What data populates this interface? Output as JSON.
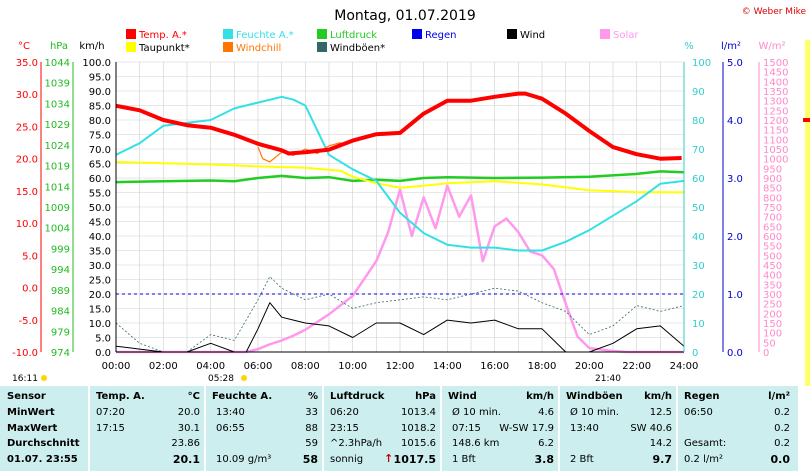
{
  "title": "Montag, 01.07.2019",
  "copyright": "© Weber Mike",
  "legend": [
    {
      "label": "Temp. A.*",
      "color": "#ff0000"
    },
    {
      "label": "Feuchte A.*",
      "color": "#33e0e6"
    },
    {
      "label": "Luftdruck",
      "color": "#22cc22"
    },
    {
      "label": "Regen",
      "color": "#0000ee"
    },
    {
      "label": "Wind",
      "color": "#000000"
    },
    {
      "label": "Solar",
      "color": "#ff99ee"
    },
    {
      "label": "Taupunkt*",
      "color": "#ffff00"
    },
    {
      "label": "Windchill",
      "color": "#ff7700"
    },
    {
      "label": "Windböen*",
      "color": "#336666"
    }
  ],
  "axis_units": {
    "temp": "°C",
    "press": "hPa",
    "wind": "km/h",
    "hum": "%",
    "rain": "l/m²",
    "solar": "W/m²"
  },
  "sun": {
    "rise": "05:28",
    "set": "21:40",
    "left_label": "16:11"
  },
  "chart_data": {
    "type": "line",
    "x_range": [
      "00:00",
      "24:00"
    ],
    "x_ticks": [
      "00:00",
      "02:00",
      "04:00",
      "06:00",
      "08:00",
      "10:00",
      "12:00",
      "14:00",
      "16:00",
      "18:00",
      "20:00",
      "22:00",
      "24:00"
    ],
    "ylim_temp": [
      -10,
      35
    ],
    "temp_ticks": [
      "35.0",
      "30.0",
      "25.0",
      "20.0",
      "15.0",
      "10.0",
      "5.0",
      "0.0",
      "-5.0",
      "-10.0"
    ],
    "ylim_press": [
      974,
      1044
    ],
    "press_ticks": [
      "1044",
      "1039",
      "1034",
      "1029",
      "1024",
      "1019",
      "1014",
      "1009",
      "1004",
      "999",
      "994",
      "989",
      "984",
      "979",
      "974"
    ],
    "ylim_wind": [
      0,
      100
    ],
    "wind_ticks": [
      "100.0",
      "95.0",
      "90.0",
      "85.0",
      "80.0",
      "75.0",
      "70.0",
      "65.0",
      "60.0",
      "55.0",
      "50.0",
      "45.0",
      "40.0",
      "35.0",
      "30.0",
      "25.0",
      "20.0",
      "15.0",
      "10.0",
      "5.0",
      "0.0"
    ],
    "ylim_hum": [
      0,
      100
    ],
    "hum_ticks": [
      "100",
      "90",
      "80",
      "70",
      "60",
      "50",
      "40",
      "30",
      "20",
      "10",
      "0"
    ],
    "ylim_rain": [
      0,
      5
    ],
    "rain_ticks": [
      "5.0",
      "4.0",
      "3.0",
      "2.0",
      "1.0",
      "0.0"
    ],
    "ylim_solar": [
      0,
      1500
    ],
    "solar_ticks": [
      "1500",
      "1450",
      "1400",
      "1350",
      "1300",
      "1250",
      "1200",
      "1150",
      "1100",
      "1050",
      "1000",
      "950",
      "900",
      "850",
      "800",
      "750",
      "700",
      "650",
      "600",
      "550",
      "500",
      "450",
      "400",
      "350",
      "300",
      "250",
      "200",
      "150",
      "100",
      "50",
      "0"
    ],
    "series": [
      {
        "name": "Temp. A.*",
        "axis": "temp",
        "color": "#ff0000",
        "x": [
          0,
          1,
          2,
          3,
          4,
          5,
          6,
          7,
          7.3,
          8,
          9,
          10,
          11,
          12,
          13,
          14,
          15,
          16,
          17,
          17.3,
          18,
          19,
          20,
          21,
          22,
          23,
          23.9
        ],
        "y": [
          28.2,
          27.5,
          26,
          25.2,
          24.8,
          23.7,
          22.3,
          21.3,
          20.8,
          21,
          21.4,
          22.8,
          23.8,
          24,
          27,
          29,
          29,
          29.6,
          30.1,
          30.1,
          29.3,
          27,
          24.3,
          21.8,
          20.7,
          20,
          20.1
        ]
      },
      {
        "name": "Feuchte A.*",
        "axis": "hum",
        "color": "#33e0e6",
        "x": [
          0,
          1,
          2,
          3,
          4,
          5,
          6,
          7,
          7.5,
          8,
          9,
          10,
          11,
          12,
          13,
          14,
          15,
          16,
          17,
          18,
          19,
          20,
          21,
          22,
          23,
          24
        ],
        "y": [
          68,
          72,
          78,
          79,
          80,
          84,
          86,
          88,
          87,
          85,
          68,
          63,
          59,
          48,
          41,
          37,
          36,
          36,
          35,
          35,
          38,
          42,
          47,
          52,
          58,
          59
        ]
      },
      {
        "name": "Luftdruck",
        "axis": "press",
        "color": "#22cc22",
        "x": [
          0,
          2,
          4,
          5,
          6,
          7,
          8,
          9,
          10,
          11,
          12,
          13,
          14,
          16,
          18,
          20,
          22,
          23,
          24
        ],
        "y": [
          1015,
          1015.2,
          1015.4,
          1015.2,
          1016,
          1016.5,
          1016,
          1016.2,
          1015.3,
          1015.6,
          1015.3,
          1016,
          1016.2,
          1016,
          1016.1,
          1016.3,
          1017,
          1017.6,
          1017.4
        ]
      },
      {
        "name": "Taupunkt*",
        "axis": "temp",
        "color": "#ffff00",
        "x": [
          0,
          2,
          4,
          6,
          8,
          9.5,
          10,
          11,
          12,
          13,
          14,
          16,
          18,
          20,
          22,
          24
        ],
        "y": [
          19.5,
          19.3,
          19.1,
          18.8,
          18.6,
          18.1,
          17.2,
          16.2,
          15.5,
          15.8,
          16.2,
          16.5,
          16,
          15.1,
          14.8,
          14.8
        ]
      },
      {
        "name": "Windchill",
        "axis": "temp",
        "color": "#ff7700",
        "x": [
          6,
          6.2,
          6.5,
          7,
          7.5,
          8,
          8.5,
          9,
          9.5
        ],
        "y": [
          21.8,
          20,
          19.5,
          21,
          20.5,
          21.5,
          20.8,
          22,
          22.5
        ]
      },
      {
        "name": "Wind",
        "axis": "wind",
        "color": "#000000",
        "x": [
          0,
          1,
          2,
          3,
          4,
          5,
          5.5,
          6,
          6.5,
          7,
          7.5,
          8,
          9,
          10,
          11,
          12,
          13,
          14,
          15,
          16,
          17,
          18,
          19,
          20,
          21,
          22,
          23,
          24
        ],
        "y": [
          2,
          1,
          0,
          0,
          3,
          0,
          0,
          8,
          17,
          12,
          11,
          10,
          9,
          5,
          10,
          10,
          6,
          11,
          10,
          11,
          8,
          8,
          0,
          0,
          3,
          8,
          9,
          2
        ]
      },
      {
        "name": "Windböen*",
        "axis": "wind",
        "color": "#336666",
        "x": [
          0,
          1,
          2,
          3,
          4,
          5,
          6,
          6.5,
          7,
          8,
          9,
          10,
          11,
          12,
          13,
          14,
          15,
          16,
          17,
          18,
          19,
          20,
          21,
          22,
          23,
          24
        ],
        "y": [
          10,
          3,
          0,
          0,
          6,
          4,
          18,
          26,
          22,
          18,
          20,
          15,
          17,
          18,
          19,
          18,
          20,
          22,
          21,
          17,
          14,
          6,
          9,
          16,
          14,
          16
        ]
      },
      {
        "name": "Regen",
        "axis": "rain",
        "color": "#0000ee",
        "x": [
          0,
          24
        ],
        "y": [
          1.0,
          1.0
        ]
      },
      {
        "name": "Solar",
        "axis": "solar",
        "color": "#ff99ee",
        "x": [
          0,
          5.5,
          6,
          6.5,
          7,
          7.5,
          8,
          8.5,
          9,
          10,
          11,
          11.5,
          12,
          12.5,
          13,
          13.5,
          14,
          14.5,
          15,
          15.5,
          16,
          16.5,
          17,
          17.5,
          18,
          18.5,
          19,
          19.5,
          20,
          21,
          21.6,
          24
        ],
        "y": [
          0,
          0,
          15,
          40,
          60,
          85,
          115,
          155,
          195,
          290,
          470,
          620,
          840,
          600,
          800,
          640,
          860,
          700,
          810,
          470,
          650,
          690,
          620,
          520,
          500,
          430,
          250,
          80,
          20,
          5,
          0,
          0
        ]
      }
    ]
  },
  "stats": {
    "headers": {
      "sensor": "Sensor",
      "temp": "Temp. A.",
      "temp_unit": "°C",
      "hum": "Feuchte A.",
      "hum_unit": "%",
      "press": "Luftdruck",
      "press_unit": "hPa",
      "wind": "Wind",
      "wind_unit": "km/h",
      "gust": "Windböen",
      "gust_unit": "km/h",
      "rain": "Regen",
      "rain_unit": "l/m²"
    },
    "rows": [
      {
        "label": "MinWert",
        "temp_time": "07:20",
        "temp_val": "20.0",
        "hum_time": "13:40",
        "hum_val": "33",
        "press_time": "06:20",
        "press_val": "1013.4",
        "wind_label": "Ø 10 min.",
        "wind_val": "4.6",
        "gust_label": "Ø 10 min.",
        "gust_val": "12.5",
        "rain_time": "06:50",
        "rain_val": "0.2"
      },
      {
        "label": "MaxWert",
        "temp_time": "17:15",
        "temp_val": "30.1",
        "hum_time": "06:55",
        "hum_val": "88",
        "press_time": "23:15",
        "press_val": "1018.2",
        "wind_label": "07:15",
        "wind_dir": "W-SW 17.9",
        "gust_label": "13:40",
        "gust_val": "SW 40.6",
        "rain_time": "",
        "rain_val": "0.2"
      },
      {
        "label": "Durchschnitt",
        "temp_time": "",
        "temp_val": "23.86",
        "hum_time": "",
        "hum_val": "59",
        "press_time": "^2.3hPa/h",
        "press_val": "1015.6",
        "wind_label": "148.6 km",
        "wind_val": "6.2",
        "gust_label": "",
        "gust_val": "14.2",
        "rain_time": "Gesamt:",
        "rain_val": "0.2"
      },
      {
        "label": "01.07. 23:55",
        "temp_time": "",
        "temp_val": "20.1",
        "hum_time": "10.09 g/m³",
        "hum_val": "58",
        "press_time": "sonnig",
        "press_arrow": "↑",
        "press_val": "1017.5",
        "wind_label": "1 Bft",
        "wind_val": "3.8",
        "gust_label": "2 Bft",
        "gust_val": "9.7",
        "rain_time": "0.2 l/m²",
        "rain_val": "0.0"
      }
    ]
  }
}
